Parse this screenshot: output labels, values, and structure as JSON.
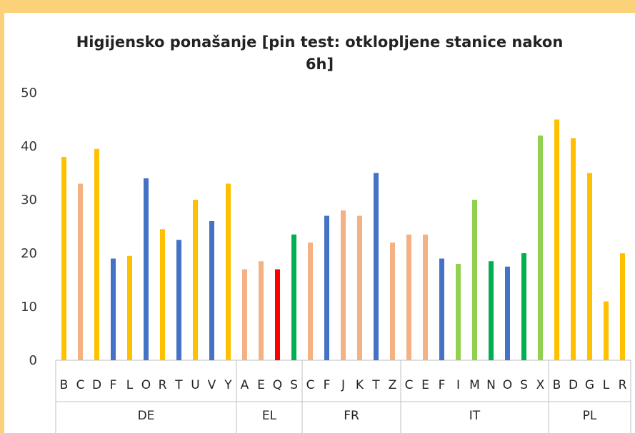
{
  "chart_data": {
    "type": "bar",
    "title_line1": "Higijensko ponašanje [pin test: otklopljene stanice nakon",
    "title_line2": "6h]",
    "ylim": [
      0,
      50
    ],
    "yticks": [
      0,
      10,
      20,
      30,
      40,
      50
    ],
    "grid": false,
    "legend": "none",
    "groups": [
      {
        "name": "DE",
        "categories": [
          "B",
          "C",
          "D",
          "F",
          "L",
          "O",
          "R",
          "T",
          "U",
          "V",
          "Y"
        ]
      },
      {
        "name": "EL",
        "categories": [
          "A",
          "E",
          "Q",
          "S"
        ]
      },
      {
        "name": "FR",
        "categories": [
          "C",
          "F",
          "J",
          "K",
          "T",
          "Z"
        ]
      },
      {
        "name": "IT",
        "categories": [
          "C",
          "E",
          "F",
          "I",
          "M",
          "N",
          "O",
          "S",
          "X"
        ]
      },
      {
        "name": "PL",
        "categories": [
          "B",
          "D",
          "G",
          "L",
          "R"
        ]
      }
    ],
    "values": [
      38,
      33,
      39.5,
      19,
      19.5,
      34,
      24.5,
      22.5,
      30,
      26,
      33,
      17,
      18.5,
      17,
      23.5,
      22,
      27,
      28,
      27,
      35,
      22,
      23.5,
      23.5,
      19,
      18,
      30,
      18.5,
      17.5,
      20,
      42,
      45,
      41.5,
      35,
      11,
      20
    ],
    "colors": [
      "#ffc000",
      "#f4b183",
      "#ffc000",
      "#4472c4",
      "#ffc000",
      "#4472c4",
      "#ffc000",
      "#4472c4",
      "#ffc000",
      "#4472c4",
      "#ffc000",
      "#f4b183",
      "#f4b183",
      "#ff0000",
      "#00b050",
      "#f4b183",
      "#4472c4",
      "#f4b183",
      "#f4b183",
      "#4472c4",
      "#f4b183",
      "#f4b183",
      "#f4b183",
      "#4472c4",
      "#92d050",
      "#92d050",
      "#00b050",
      "#4472c4",
      "#00b050",
      "#92d050",
      "#ffc000",
      "#ffc000",
      "#ffc000",
      "#ffc000",
      "#ffc000"
    ]
  }
}
